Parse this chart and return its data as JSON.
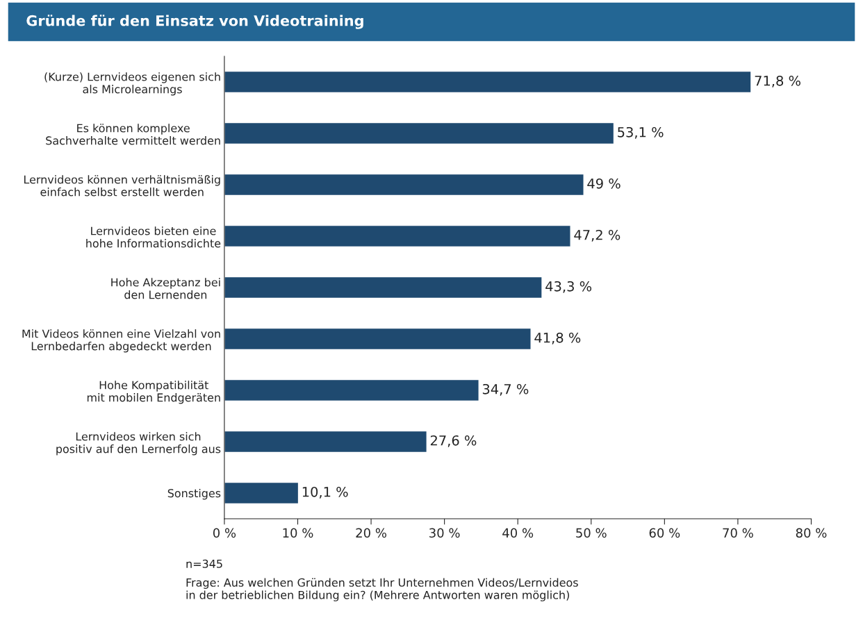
{
  "chart_data": {
    "type": "bar",
    "orientation": "horizontal",
    "title": "Gründe für den Einsatz von Videotraining",
    "categories": [
      "(Kurze) Lernvideos eigenen sich\nals Microlearnings",
      "Es können komplexe\nSachverhalte vermittelt werden",
      "Lernvideos können verhältnismäßig\neinfach selbst erstellt werden",
      "Lernvideos bieten eine\nhohe Informationsdichte",
      "Hohe Akzeptanz bei\nden Lernenden",
      "Mit Videos können eine Vielzahl von\nLernbedarfen abgedeckt werden",
      "Hohe Kompatibilität\nmit mobilen Endgeräten",
      "Lernvideos wirken sich\npositiv auf den Lernerfolg aus",
      "Sonstiges"
    ],
    "values": [
      71.8,
      53.1,
      49,
      47.2,
      43.3,
      41.8,
      34.7,
      27.6,
      10.1
    ],
    "value_labels": [
      "71,8 %",
      "53,1 %",
      "49 %",
      "47,2 %",
      "43,3 %",
      "41,8 %",
      "34,7 %",
      "27,6 %",
      "10,1 %"
    ],
    "color": "#1f4a70",
    "xlim": [
      0,
      80
    ],
    "xticks": [
      {
        "value": 0,
        "label": "0 %"
      },
      {
        "value": 10,
        "label": "10 %"
      },
      {
        "value": 20,
        "label": "20 %"
      },
      {
        "value": 30,
        "label": "30 %"
      },
      {
        "value": 40,
        "label": "40 %"
      },
      {
        "value": 50,
        "label": "50 %"
      },
      {
        "value": 60,
        "label": "60 %"
      },
      {
        "value": 70,
        "label": "70 %"
      },
      {
        "value": 80,
        "label": "80 %"
      }
    ],
    "grid": false,
    "legend": false,
    "annotations": [
      "n=345",
      "Frage: Aus welchen Gründen setzt Ihr Unternehmen Videos/Lernvideos\nin der betrieblichen Bildung ein? (Mehrere Antworten waren möglich)"
    ]
  }
}
